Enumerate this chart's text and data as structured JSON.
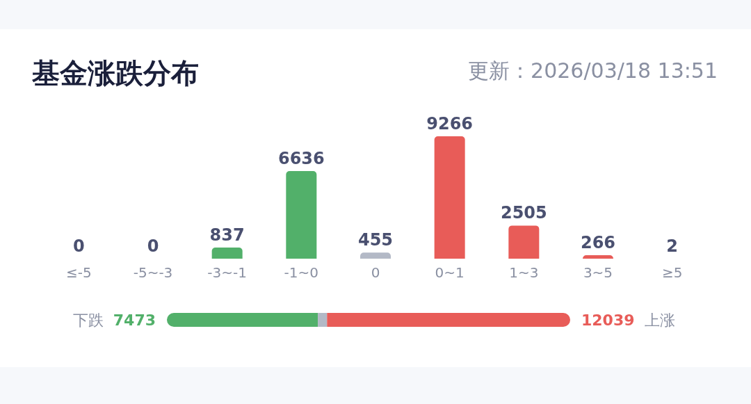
{
  "chart_data": [
    {
      "type": "bar",
      "title": "基金涨跌分布",
      "subtitle": "更新：2026/03/18 13:51",
      "categories": [
        "≤-5",
        "-5~-3",
        "-3~-1",
        "-1~0",
        "0",
        "0~1",
        "1~3",
        "3~5",
        "≥5"
      ],
      "values": [
        0,
        0,
        837,
        6636,
        455,
        9266,
        2505,
        266,
        2
      ],
      "colors": [
        "#52b06a",
        "#52b06a",
        "#52b06a",
        "#52b06a",
        "#b3b9c6",
        "#e85c58",
        "#e85c58",
        "#e85c58",
        "#e85c58"
      ],
      "data_labels": true,
      "tick_labels": "x"
    },
    {
      "type": "bar",
      "orientation": "horizontal",
      "stacked": true,
      "categories": [
        null
      ],
      "tick_labels": false,
      "annotations": [
        "下跌",
        "上涨"
      ],
      "series": [
        {
          "color": "#52b06a",
          "values": [
            7473
          ],
          "value_labels": [
            "7473"
          ]
        },
        {
          "color": "#b3b9c6",
          "values": [
            455
          ]
        },
        {
          "color": "#e85c58",
          "values": [
            12039
          ],
          "value_labels": [
            "12039"
          ]
        }
      ]
    }
  ]
}
